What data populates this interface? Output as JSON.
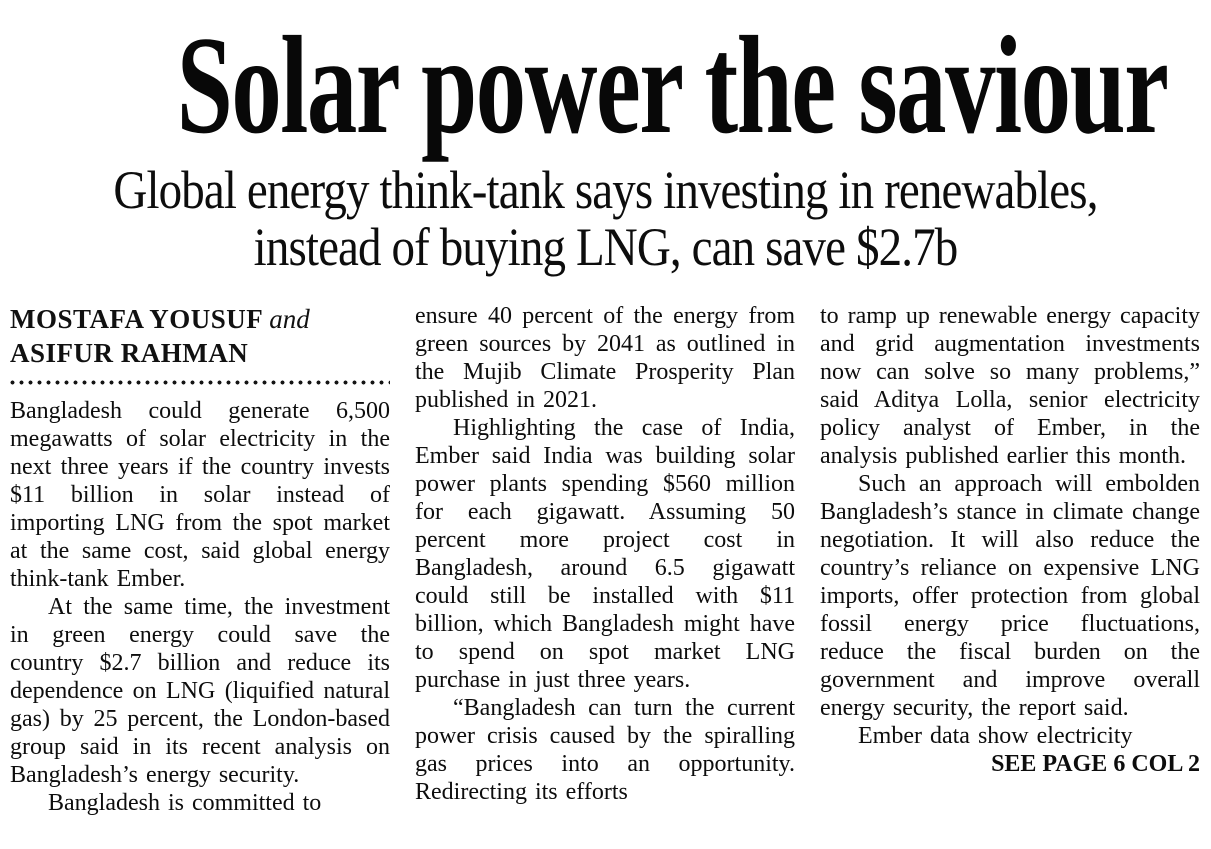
{
  "page": {
    "background_color": "#ffffff",
    "text_color": "#0d0d0d"
  },
  "headline": {
    "title": "Solar power the saviour"
  },
  "subhead": {
    "lines": [
      "Global energy think-tank says investing in renewables,",
      "instead of buying LNG, can save $2.7b"
    ]
  },
  "byline": {
    "author1": "MOSTAFA YOUSUF",
    "conjunction": "and",
    "author2": "ASIFUR RAHMAN"
  },
  "article": {
    "columns": [
      {
        "paragraphs": [
          {
            "indent": false,
            "text": "Bangladesh could generate 6,500 megawatts of solar electricity in the next three years if the country invests $11 billion in solar instead of importing LNG from the spot market at the same cost, said global energy think-tank Ember."
          },
          {
            "indent": true,
            "text": "At the same time, the investment in green energy could save the country $2.7 billion and reduce its dependence on LNG (liquified natural gas) by 25 percent, the London-based group said in its recent analysis on Bangladesh’s energy security."
          },
          {
            "indent": true,
            "text": "Bangladesh is committed to"
          }
        ]
      },
      {
        "paragraphs": [
          {
            "indent": false,
            "text": "ensure 40 percent of the energy from green sources by 2041 as outlined in the Mujib Climate Prosperity Plan published in 2021."
          },
          {
            "indent": true,
            "text": "Highlighting the case of India, Ember said India was building solar power plants spending $560 million for each gigawatt. Assuming 50 percent more project cost in Bangladesh, around 6.5 gigawatt could still be installed with $11 billion, which Bangladesh might have to spend on spot market LNG purchase in just three years."
          },
          {
            "indent": true,
            "text": "“Bangladesh can turn the current power crisis caused by the spiralling gas prices into an opportunity. Redirecting its efforts"
          }
        ]
      },
      {
        "paragraphs": [
          {
            "indent": false,
            "text": "to ramp up renewable energy capacity and grid augmentation investments now can solve so many problems,” said Aditya Lolla, senior electricity policy analyst of Ember, in the analysis published earlier this month."
          },
          {
            "indent": true,
            "text": "Such an approach will embolden Bangladesh’s stance in climate change negotiation. It will also reduce the country’s reliance on expensive LNG imports, offer protection from global fossil energy price fluctuations, reduce the fiscal burden on the government and improve overall energy security, the report said."
          },
          {
            "indent": true,
            "text": "Ember data show electricity"
          }
        ]
      }
    ]
  },
  "jump": {
    "label": "SEE PAGE 6 COL 2"
  }
}
